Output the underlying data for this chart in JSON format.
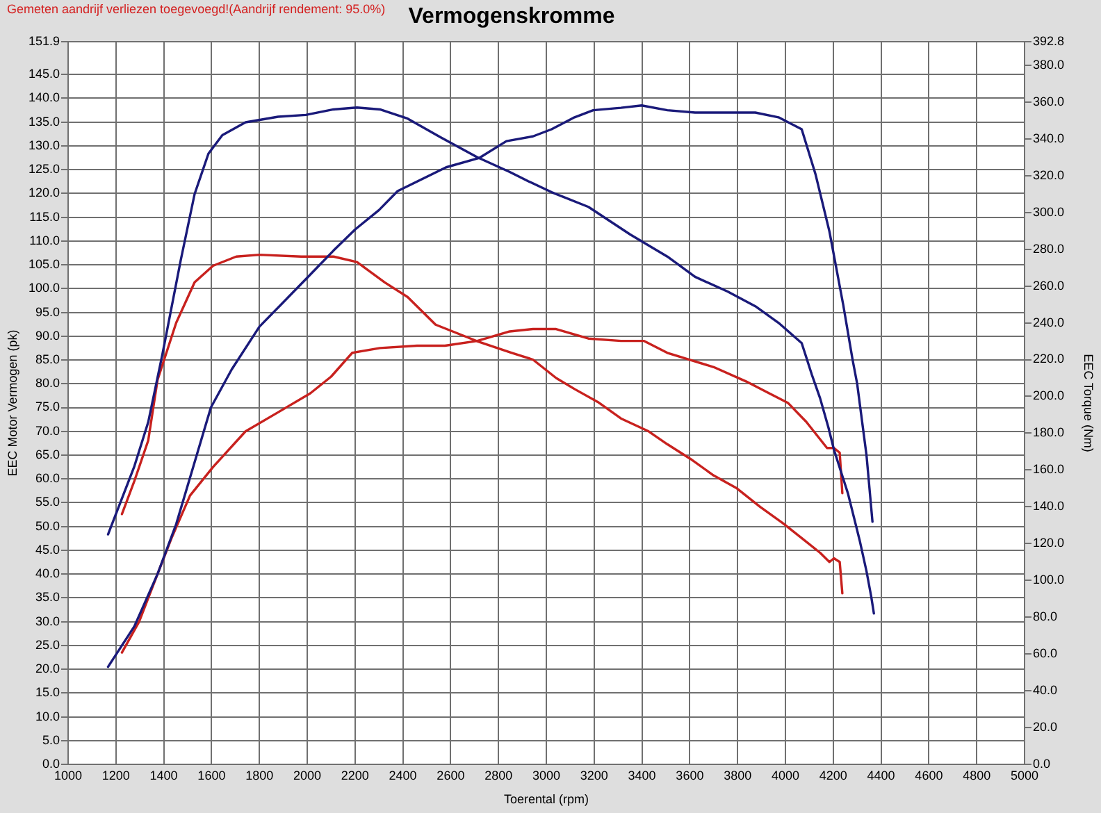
{
  "chart_data": {
    "type": "line",
    "title": "Vermogenskromme",
    "xlabel": "Toerental (rpm)",
    "ylabel": "EEC Motor Vermogen (pk)",
    "y2label": "EEC Torque (Nm)",
    "annotations": [
      "Gemeten aandrijf verliezen toegevoegd!(Aandrijf rendement: 95.0%)"
    ],
    "xlim": [
      1000,
      5000
    ],
    "xticks": [
      1000,
      1200,
      1400,
      1600,
      1800,
      2000,
      2200,
      2400,
      2600,
      2800,
      3000,
      3200,
      3400,
      3600,
      3800,
      4000,
      4200,
      4400,
      4600,
      4800,
      5000
    ],
    "ylim": [
      0,
      151.9
    ],
    "yticks": [
      {
        "value": 0,
        "label": "0.0"
      },
      {
        "value": 5,
        "label": "5.0"
      },
      {
        "value": 10,
        "label": "10.0"
      },
      {
        "value": 15,
        "label": "15.0"
      },
      {
        "value": 20,
        "label": "20.0"
      },
      {
        "value": 25,
        "label": "25.0"
      },
      {
        "value": 30,
        "label": "30.0"
      },
      {
        "value": 35,
        "label": "35.0"
      },
      {
        "value": 40,
        "label": "40.0"
      },
      {
        "value": 45,
        "label": "45.0"
      },
      {
        "value": 50,
        "label": "50.0"
      },
      {
        "value": 55,
        "label": "55.0"
      },
      {
        "value": 60,
        "label": "60.0"
      },
      {
        "value": 65,
        "label": "65.0"
      },
      {
        "value": 70,
        "label": "70.0"
      },
      {
        "value": 75,
        "label": "75.0"
      },
      {
        "value": 80,
        "label": "80.0"
      },
      {
        "value": 85,
        "label": "85.0"
      },
      {
        "value": 90,
        "label": "90.0"
      },
      {
        "value": 95,
        "label": "95.0"
      },
      {
        "value": 100,
        "label": "100.0"
      },
      {
        "value": 105,
        "label": "105.0"
      },
      {
        "value": 110,
        "label": "110.0"
      },
      {
        "value": 115,
        "label": "115.0"
      },
      {
        "value": 120,
        "label": "120.0"
      },
      {
        "value": 125,
        "label": "125.0"
      },
      {
        "value": 130,
        "label": "130.0"
      },
      {
        "value": 135,
        "label": "135.0"
      },
      {
        "value": 140,
        "label": "140.0"
      },
      {
        "value": 145,
        "label": "145.0"
      },
      151.9
    ],
    "y2lim": [
      0,
      392.8
    ],
    "y2ticks": [
      {
        "value": 0,
        "label": "0.0"
      },
      {
        "value": 20,
        "label": "20.0"
      },
      {
        "value": 40,
        "label": "40.0"
      },
      {
        "value": 60,
        "label": "60.0"
      },
      {
        "value": 80,
        "label": "80.0"
      },
      {
        "value": 100,
        "label": "100.0"
      },
      {
        "value": 120,
        "label": "120.0"
      },
      {
        "value": 140,
        "label": "140.0"
      },
      {
        "value": 160,
        "label": "160.0"
      },
      {
        "value": 180,
        "label": "180.0"
      },
      {
        "value": 200,
        "label": "200.0"
      },
      {
        "value": 220,
        "label": "220.0"
      },
      {
        "value": 240,
        "label": "240.0"
      },
      {
        "value": 260,
        "label": "260.0"
      },
      {
        "value": 280,
        "label": "280.0"
      },
      {
        "value": 300,
        "label": "300.0"
      },
      {
        "value": 320,
        "label": "320.0"
      },
      {
        "value": 340,
        "label": "340.0"
      },
      {
        "value": 360,
        "label": "360.0"
      },
      {
        "value": 380,
        "label": "380.0"
      },
      392.8
    ],
    "grid": true,
    "marker": "none",
    "line_style": "solid",
    "series": [
      {
        "color": "#1a1a7a",
        "x": [
          1167,
          1277,
          1374,
          1452,
          1529,
          1597,
          1684,
          1800,
          1917,
          2033,
          2110,
          2202,
          2300,
          2378,
          2581,
          2721,
          2833,
          2944,
          3022,
          3118,
          3196,
          3312,
          3399,
          3506,
          3622,
          3738,
          3874,
          3971,
          4068,
          4126,
          4184,
          4242,
          4281,
          4300,
          4339,
          4364
        ],
        "values": [
          20.5,
          29,
          40,
          50.5,
          63.5,
          75,
          83,
          92,
          98,
          104,
          108,
          112.5,
          116.5,
          120.5,
          125.5,
          127.5,
          131,
          132,
          133.5,
          136,
          137.5,
          138,
          138.5,
          137.5,
          137,
          137,
          137,
          136,
          133.5,
          124,
          112,
          96.5,
          85,
          80,
          65,
          51
        ]
      },
      {
        "color": "#1a1a7a",
        "axis": "y2",
        "x": [
          1167,
          1277,
          1335,
          1393,
          1471,
          1529,
          1587,
          1645,
          1742,
          1878,
          1994,
          2110,
          2208,
          2304,
          2420,
          2556,
          2711,
          2847,
          2924,
          3022,
          3176,
          3351,
          3506,
          3622,
          3758,
          3874,
          3971,
          4068,
          4110,
          4145,
          4180,
          4203,
          4262,
          4310,
          4339,
          4359,
          4370
        ],
        "values": [
          125,
          162,
          186,
          222,
          274,
          310,
          332,
          342,
          349,
          352,
          353,
          356,
          357,
          356,
          351,
          341,
          330,
          322,
          317,
          311,
          303,
          288,
          276,
          265,
          257,
          249,
          240,
          229,
          212,
          199,
          183,
          171,
          147,
          122,
          105,
          91,
          82
        ]
      },
      {
        "color": "#c8211e",
        "x": [
          1225,
          1297,
          1374,
          1432,
          1510,
          1606,
          1742,
          1878,
          2013,
          2100,
          2188,
          2304,
          2459,
          2576,
          2711,
          2847,
          2944,
          3041,
          3176,
          3312,
          3409,
          3506,
          3603,
          3700,
          3835,
          3932,
          4010,
          4087,
          4174,
          4203,
          4227,
          4238
        ],
        "values": [
          23.5,
          30,
          40,
          47.5,
          56.5,
          62.5,
          70,
          74,
          78,
          81.5,
          86.5,
          87.5,
          88,
          88,
          89,
          91,
          91.5,
          91.5,
          89.5,
          89,
          89,
          86.5,
          85,
          83.5,
          80.5,
          78,
          76,
          72,
          66.5,
          66.5,
          65.5,
          57
        ]
      },
      {
        "color": "#c8211e",
        "axis": "y2",
        "x": [
          1225,
          1277,
          1335,
          1374,
          1452,
          1529,
          1606,
          1703,
          1800,
          1975,
          2110,
          2208,
          2324,
          2420,
          2537,
          2711,
          2847,
          2944,
          3041,
          3118,
          3215,
          3312,
          3428,
          3506,
          3603,
          3700,
          3797,
          3894,
          3990,
          4068,
          4145,
          4184,
          4203,
          4227,
          4238
        ],
        "values": [
          136,
          154,
          176,
          209,
          240,
          262,
          271,
          276,
          277,
          276,
          276,
          273,
          262,
          254,
          239,
          230,
          224,
          220,
          210,
          204,
          197,
          188,
          181,
          174,
          166,
          157,
          150,
          140,
          131,
          123,
          115,
          110,
          112,
          110,
          93
        ]
      }
    ]
  }
}
